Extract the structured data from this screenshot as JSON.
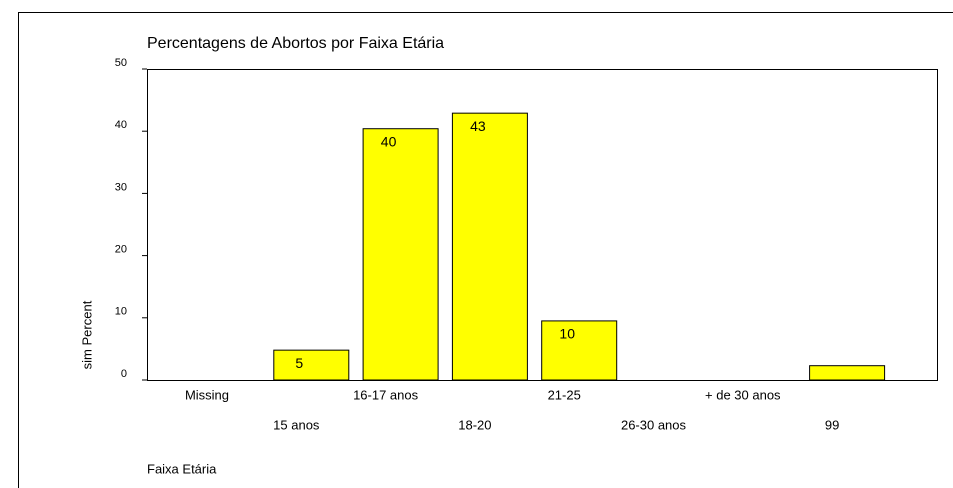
{
  "chart_data": {
    "type": "bar",
    "title": "Percentagens de Abortos por Faixa Etária",
    "y_label": "sim Percent",
    "x_label": "Faixa Etária",
    "categories": [
      "Missing",
      "15 anos",
      "16-17 anos",
      "18-20",
      "21-25",
      "26-30 anos",
      "+ de 30 anos",
      "99"
    ],
    "values": [
      0,
      4.8,
      40.4,
      42.9,
      9.5,
      0,
      0,
      2.3
    ],
    "value_labels": [
      null,
      "5",
      "40",
      "43",
      "10",
      null,
      null,
      null
    ],
    "color": "#ffff00",
    "ylim": [
      0,
      50
    ],
    "yticks": [
      0,
      10,
      20,
      30,
      40,
      50
    ],
    "grid": false
  }
}
